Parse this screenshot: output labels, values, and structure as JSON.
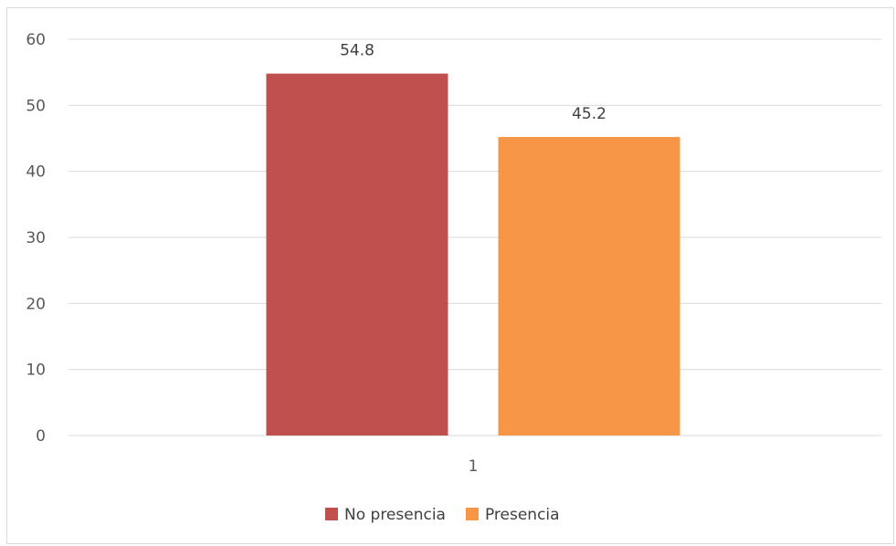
{
  "chart_data": {
    "type": "bar",
    "categories": [
      "1"
    ],
    "series": [
      {
        "name": "No presencia",
        "values": [
          54.8
        ],
        "color": "#c0504d"
      },
      {
        "name": "Presencia",
        "values": [
          45.2
        ],
        "color": "#f79646"
      }
    ],
    "ylim": [
      0,
      60
    ],
    "yticks": [
      "0",
      "10",
      "20",
      "30",
      "40",
      "50",
      "60"
    ],
    "data_labels": [
      "54.8",
      "45.2"
    ],
    "grid": true,
    "legend_position": "bottom",
    "colors": {
      "grid": "#d9d9d9",
      "axis_text": "#595959",
      "label_text": "#404040"
    }
  }
}
